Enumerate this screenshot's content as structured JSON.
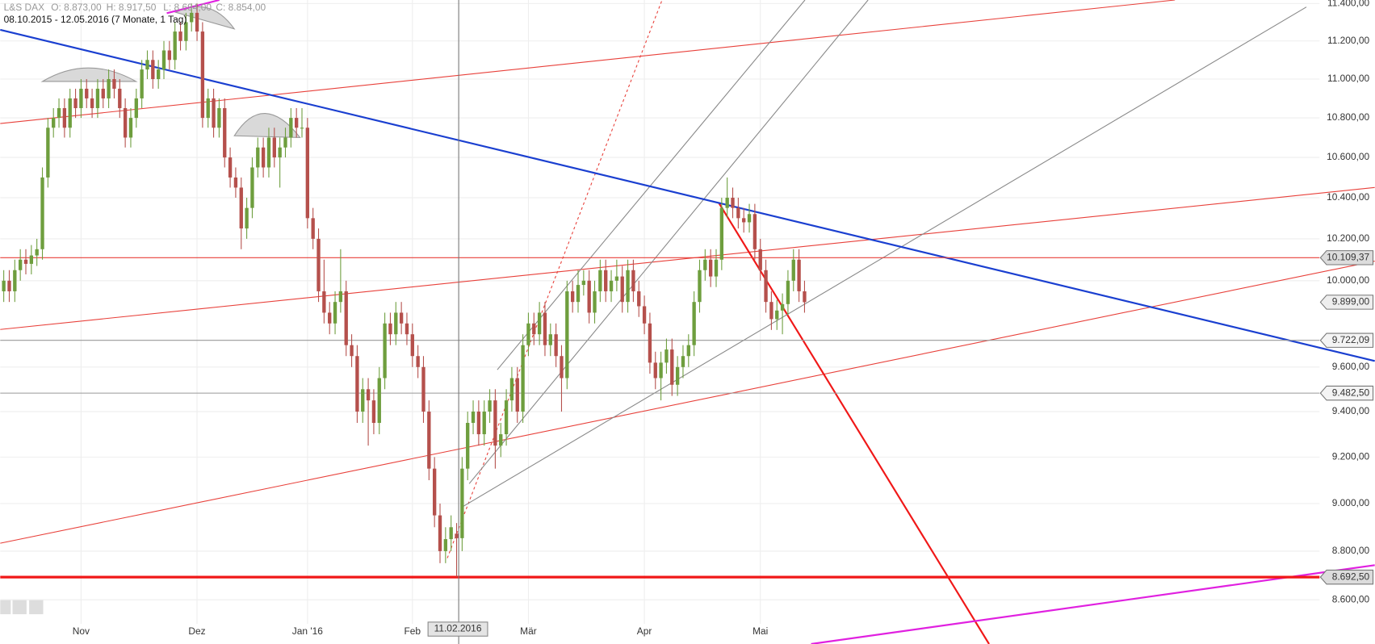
{
  "chart_data": {
    "type": "candlestick",
    "instrument": "L&S DAX",
    "ohlc_legend": [
      {
        "value": 8873,
        "label": "O: 8.873,00"
      },
      {
        "value": 8917.5,
        "label": "H: 8.917,50"
      },
      {
        "value": 8694,
        "label": "L: 8.694,00"
      },
      {
        "value": 8854,
        "label": "C: 8.854,00"
      }
    ],
    "range_label": "08.10.2015 - 12.05.2016 (7 Monate, 1 Tag)",
    "crosshair_label": "11.02.2016",
    "log_scale": true,
    "grid": true,
    "up_color": "#6e9e3e",
    "down_color": "#b5504c",
    "ylim": [
      8422,
      11419
    ],
    "yticks": [
      {
        "value": 8600,
        "label": "8.600,00"
      },
      {
        "value": 8800,
        "label": "8.800,00"
      },
      {
        "value": 9000,
        "label": "9.000,00"
      },
      {
        "value": 9200,
        "label": "9.200,00"
      },
      {
        "value": 9400,
        "label": "9.400,00"
      },
      {
        "value": 9600,
        "label": "9.600,00"
      },
      {
        "value": 10000,
        "label": "10.000,00"
      },
      {
        "value": 10200,
        "label": "10.200,00"
      },
      {
        "value": 10400,
        "label": "10.400,00"
      },
      {
        "value": 10600,
        "label": "10.600,00"
      },
      {
        "value": 10800,
        "label": "10.800,00"
      },
      {
        "value": 11000,
        "label": "11.000,00"
      },
      {
        "value": 11200,
        "label": "11.200,00"
      },
      {
        "value": 11400,
        "label": "11.400,00"
      }
    ],
    "levels": [
      {
        "value": 10109.37,
        "label": "10.109,37",
        "color": "#e8403a",
        "thick": false
      },
      {
        "value": 9722.09,
        "label": "9.722,09",
        "color": "#999999",
        "thick": false
      },
      {
        "value": 9482.5,
        "label": "9.482,50",
        "color": "#999999",
        "thick": false
      },
      {
        "value": 8692.5,
        "label": "8.692,50",
        "color": "#f01818",
        "thick": true
      }
    ],
    "last_price": {
      "value": 9899,
      "label": "9.899,00"
    },
    "categories": [
      null,
      null,
      null,
      null,
      null,
      null,
      null,
      null,
      null,
      null,
      null,
      null,
      null,
      null,
      "Nov",
      null,
      null,
      null,
      null,
      null,
      null,
      null,
      null,
      null,
      null,
      null,
      null,
      null,
      null,
      null,
      null,
      null,
      null,
      null,
      null,
      "Dez",
      null,
      null,
      null,
      null,
      null,
      null,
      null,
      null,
      null,
      null,
      null,
      null,
      null,
      null,
      null,
      null,
      null,
      null,
      null,
      "Jan '16",
      null,
      null,
      null,
      null,
      null,
      null,
      null,
      null,
      null,
      null,
      null,
      null,
      null,
      null,
      null,
      null,
      null,
      null,
      "Feb",
      null,
      null,
      null,
      null,
      null,
      null,
      null,
      null,
      null,
      null,
      null,
      null,
      null,
      null,
      null,
      null,
      null,
      null,
      null,
      null,
      "Mär",
      null,
      null,
      null,
      null,
      null,
      null,
      null,
      null,
      null,
      null,
      null,
      null,
      null,
      null,
      null,
      null,
      null,
      null,
      null,
      null,
      "Apr",
      null,
      null,
      null,
      null,
      null,
      null,
      null,
      null,
      null,
      null,
      null,
      null,
      null,
      null,
      null,
      null,
      null,
      null,
      null,
      null,
      "Mai",
      null,
      null,
      null,
      null,
      null,
      null,
      null,
      null
    ],
    "open": [
      9950,
      10000,
      9950,
      10050,
      10100,
      10080,
      10120,
      10150,
      10500,
      10750,
      10800,
      10850,
      10750,
      10900,
      10850,
      10950,
      10900,
      10850,
      10950,
      10900,
      11000,
      10950,
      10850,
      10700,
      10800,
      10900,
      11050,
      11100,
      11000,
      11050,
      11150,
      11100,
      11250,
      11200,
      11300,
      11350,
      11250,
      10800,
      10900,
      10750,
      10850,
      10600,
      10500,
      10450,
      10250,
      10350,
      10550,
      10650,
      10550,
      10700,
      10600,
      10650,
      10700,
      10800,
      10750,
      10750,
      10300,
      10200,
      9950,
      9850,
      9800,
      9900,
      9950,
      9700,
      9650,
      9400,
      9500,
      9450,
      9350,
      9550,
      9800,
      9750,
      9850,
      9800,
      9750,
      9650,
      9600,
      9400,
      9150,
      8950,
      8800,
      8850,
      8873,
      8854,
      9150,
      9350,
      9400,
      9300,
      9400,
      9450,
      9250,
      9300,
      9450,
      9550,
      9400,
      9700,
      9800,
      9750,
      9850,
      9700,
      9750,
      9650,
      9550,
      9950,
      9900,
      9980,
      10000,
      9850,
      9950,
      10050,
      9950,
      10000,
      10020,
      9900,
      10050,
      9950,
      9880,
      9800,
      9620,
      9550,
      9620,
      9680,
      9520,
      9600,
      9650,
      9700,
      9900,
      10050,
      10100,
      10020,
      10100,
      10350,
      10400,
      10350,
      10300,
      10280,
      10320,
      10150,
      10050,
      9900,
      9820,
      9860,
      9890,
      10000,
      10100,
      9950
    ],
    "high": [
      10050,
      10050,
      10100,
      10150,
      10150,
      10170,
      10200,
      10550,
      10800,
      10850,
      10900,
      10900,
      10950,
      10950,
      11000,
      11000,
      10950,
      11000,
      11000,
      11050,
      11050,
      11000,
      10900,
      10850,
      10950,
      11100,
      11150,
      11150,
      11100,
      11200,
      11200,
      11300,
      11300,
      11350,
      11400,
      11400,
      11300,
      10950,
      10950,
      10900,
      10900,
      10650,
      10550,
      10500,
      10400,
      10600,
      10700,
      10700,
      10750,
      10750,
      10700,
      10750,
      10850,
      10850,
      10850,
      10800,
      10350,
      10250,
      10100,
      9900,
      9950,
      10150,
      10000,
      9750,
      9700,
      9550,
      9550,
      9500,
      9600,
      9850,
      9850,
      9900,
      9900,
      9850,
      9800,
      9700,
      9650,
      9450,
      9200,
      9000,
      8900,
      8950,
      8917.5,
      9200,
      9400,
      9450,
      9450,
      9450,
      9500,
      9500,
      9350,
      9500,
      9600,
      9600,
      9750,
      9850,
      9850,
      9900,
      9900,
      9800,
      9800,
      9700,
      10000,
      10000,
      10050,
      10050,
      10050,
      10000,
      10100,
      10100,
      10050,
      10100,
      10070,
      10100,
      10100,
      10000,
      9930,
      9850,
      9670,
      9670,
      9730,
      9730,
      9650,
      9700,
      9750,
      9950,
      10100,
      10150,
      10150,
      10150,
      10400,
      10500,
      10450,
      10400,
      10350,
      10370,
      10370,
      10200,
      10100,
      9950,
      9910,
      9940,
      10050,
      10150,
      10150,
      10000
    ],
    "low": [
      9900,
      9900,
      9900,
      10000,
      10030,
      10030,
      10070,
      10100,
      10450,
      10700,
      10750,
      10700,
      10700,
      10800,
      10800,
      10850,
      10800,
      10800,
      10850,
      10850,
      10900,
      10800,
      10650,
      10650,
      10750,
      10850,
      11000,
      10950,
      10950,
      11000,
      11050,
      11050,
      11150,
      11150,
      11250,
      11200,
      10750,
      10750,
      10700,
      10700,
      10550,
      10450,
      10400,
      10150,
      10200,
      10300,
      10500,
      10500,
      10500,
      10550,
      10450,
      10600,
      10650,
      10700,
      10700,
      10250,
      10150,
      9900,
      9800,
      9750,
      9750,
      9850,
      9650,
      9600,
      9350,
      9350,
      9250,
      9300,
      9300,
      9500,
      9700,
      9700,
      9750,
      9700,
      9600,
      9550,
      9350,
      9100,
      8900,
      8750,
      8750,
      8800,
      8694,
      8800,
      9100,
      9300,
      9250,
      9250,
      9350,
      9150,
      9200,
      9250,
      9400,
      9350,
      9350,
      9650,
      9700,
      9700,
      9650,
      9650,
      9600,
      9400,
      9500,
      9850,
      9850,
      9930,
      9800,
      9800,
      9900,
      9900,
      9900,
      9950,
      9850,
      9850,
      9900,
      9830,
      9750,
      9570,
      9500,
      9450,
      9570,
      9470,
      9470,
      9550,
      9600,
      9650,
      9850,
      10000,
      9970,
      9970,
      10050,
      10300,
      10300,
      10250,
      10230,
      10230,
      10100,
      10000,
      9850,
      9770,
      9770,
      9750,
      9840,
      9950,
      9900,
      9850
    ],
    "close": [
      10000,
      9950,
      10050,
      10100,
      10080,
      10120,
      10150,
      10500,
      10750,
      10800,
      10850,
      10750,
      10900,
      10850,
      10950,
      10900,
      10850,
      10950,
      10900,
      11000,
      10950,
      10850,
      10700,
      10800,
      10900,
      11050,
      11100,
      11000,
      11050,
      11150,
      11100,
      11250,
      11200,
      11300,
      11350,
      11250,
      10800,
      10900,
      10750,
      10850,
      10600,
      10500,
      10450,
      10250,
      10350,
      10550,
      10650,
      10550,
      10700,
      10600,
      10650,
      10700,
      10800,
      10750,
      10750,
      10300,
      10200,
      9950,
      9850,
      9800,
      9900,
      9950,
      9700,
      9650,
      9400,
      9500,
      9450,
      9350,
      9550,
      9800,
      9750,
      9850,
      9800,
      9750,
      9650,
      9600,
      9400,
      9150,
      8950,
      8800,
      8850,
      8900,
      8854,
      9150,
      9350,
      9400,
      9300,
      9400,
      9450,
      9250,
      9300,
      9450,
      9550,
      9400,
      9700,
      9800,
      9750,
      9850,
      9700,
      9750,
      9650,
      9550,
      9950,
      9900,
      9980,
      10000,
      9850,
      9950,
      10050,
      9950,
      10000,
      10020,
      9900,
      10050,
      9950,
      9880,
      9800,
      9620,
      9550,
      9620,
      9680,
      9520,
      9600,
      9650,
      9700,
      9900,
      10050,
      10100,
      10020,
      10100,
      10350,
      10400,
      10350,
      10300,
      10280,
      10320,
      10150,
      10050,
      9900,
      9820,
      9860,
      9890,
      10000,
      10100,
      9950,
      9899
    ]
  }
}
